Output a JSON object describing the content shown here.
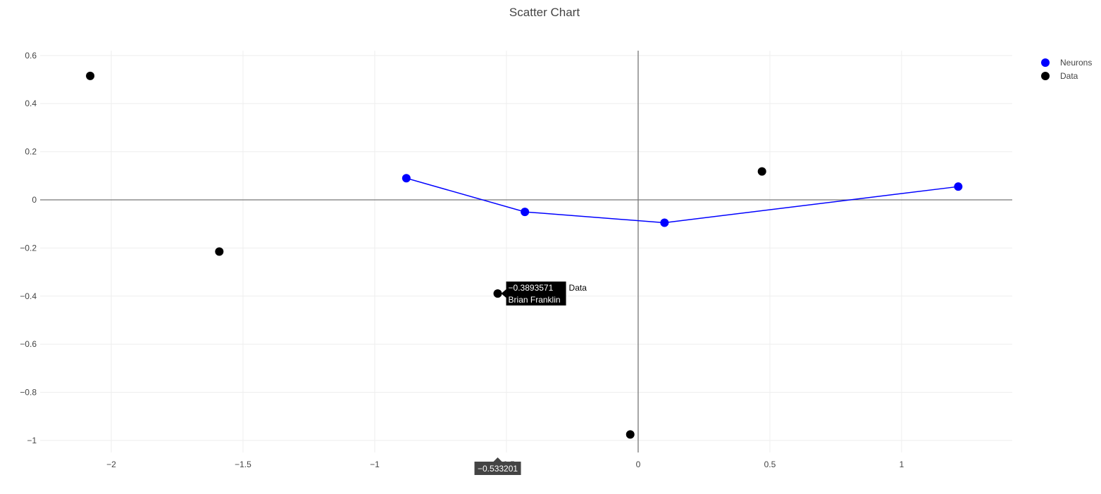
{
  "chart_data": {
    "type": "scatter",
    "title": "Scatter Chart",
    "xlabel": "",
    "ylabel": "",
    "xlim": [
      -2.27,
      1.42
    ],
    "ylim": [
      -1.05,
      0.62
    ],
    "x_ticks": [
      -2,
      -1.5,
      -1,
      -0.5,
      0,
      0.5,
      1
    ],
    "x_tick_labels": [
      "−2",
      "−1.5",
      "−1",
      "−0.5",
      "0",
      "0.5",
      "1"
    ],
    "y_ticks": [
      0.6,
      0.4,
      0.2,
      0,
      -0.2,
      -0.4,
      -0.6,
      -0.8,
      -1
    ],
    "y_tick_labels": [
      "0.6",
      "0.4",
      "0.2",
      "0",
      "−0.2",
      "−0.4",
      "−0.6",
      "−0.8",
      "−1"
    ],
    "grid": true,
    "zero_lines": true,
    "legend_position": "top-right",
    "series": [
      {
        "name": "Neurons",
        "mode": "lines+markers",
        "color": "#0000ff",
        "points": [
          {
            "x": -0.88,
            "y": 0.09
          },
          {
            "x": -0.43,
            "y": -0.05
          },
          {
            "x": 0.1,
            "y": -0.095
          },
          {
            "x": 1.215,
            "y": 0.055
          }
        ]
      },
      {
        "name": "Data",
        "mode": "markers",
        "color": "#000000",
        "points": [
          {
            "x": -2.08,
            "y": 0.515
          },
          {
            "x": -1.59,
            "y": -0.215
          },
          {
            "x": -0.533201,
            "y": -0.3893571
          },
          {
            "x": -0.03,
            "y": -0.975
          },
          {
            "x": 0.47,
            "y": 0.118
          }
        ]
      }
    ],
    "hover": {
      "series": "Data",
      "x": -0.533201,
      "y": -0.3893571,
      "y_label": "−0.3893571",
      "text": "Brian Franklin",
      "name": "Data",
      "x_label": "−0.533201"
    }
  }
}
